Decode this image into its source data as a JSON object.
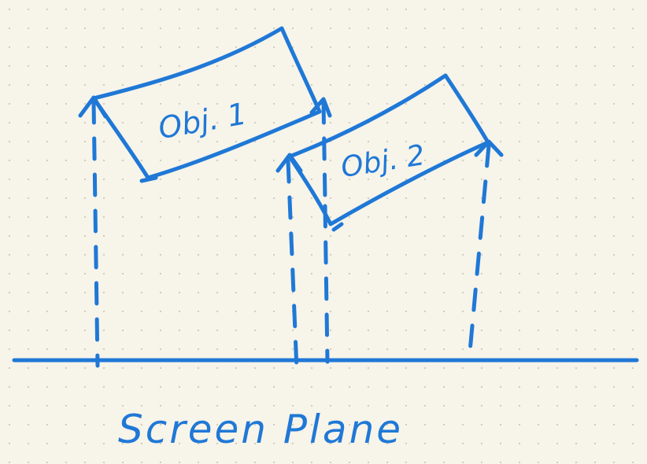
{
  "colors": {
    "paper": "#f7f4ea",
    "grid_dot": "#cfcabb",
    "ink": "#1f78d6"
  },
  "labels": {
    "object_1": "Obj. 1",
    "object_2": "Obj. 2",
    "screen_plane": "Screen Plane"
  }
}
